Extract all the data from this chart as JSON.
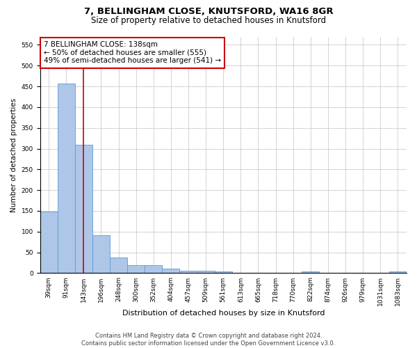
{
  "title1": "7, BELLINGHAM CLOSE, KNUTSFORD, WA16 8GR",
  "title2": "Size of property relative to detached houses in Knutsford",
  "xlabel": "Distribution of detached houses by size in Knutsford",
  "ylabel": "Number of detached properties",
  "categories": [
    "39sqm",
    "91sqm",
    "143sqm",
    "196sqm",
    "248sqm",
    "300sqm",
    "352sqm",
    "404sqm",
    "457sqm",
    "509sqm",
    "561sqm",
    "613sqm",
    "665sqm",
    "718sqm",
    "770sqm",
    "822sqm",
    "874sqm",
    "926sqm",
    "979sqm",
    "1031sqm",
    "1083sqm"
  ],
  "values": [
    148,
    456,
    310,
    92,
    38,
    19,
    20,
    10,
    5,
    6,
    4,
    0,
    0,
    0,
    0,
    4,
    0,
    0,
    0,
    0,
    4
  ],
  "bar_color": "#aec6e8",
  "bar_edge_color": "#5b9bd5",
  "vline_x_index": 2,
  "vline_color": "#cc0000",
  "annotation_text": "7 BELLINGHAM CLOSE: 138sqm\n← 50% of detached houses are smaller (555)\n49% of semi-detached houses are larger (541) →",
  "annotation_box_color": "#ffffff",
  "annotation_box_edge": "#cc0000",
  "ylim": [
    0,
    570
  ],
  "yticks": [
    0,
    50,
    100,
    150,
    200,
    250,
    300,
    350,
    400,
    450,
    500,
    550
  ],
  "grid_color": "#cccccc",
  "background_color": "#ffffff",
  "footer": "Contains HM Land Registry data © Crown copyright and database right 2024.\nContains public sector information licensed under the Open Government Licence v3.0.",
  "title1_fontsize": 9.5,
  "title2_fontsize": 8.5,
  "xlabel_fontsize": 8,
  "ylabel_fontsize": 7.5,
  "tick_fontsize": 6.5,
  "annotation_fontsize": 7.5,
  "footer_fontsize": 6
}
